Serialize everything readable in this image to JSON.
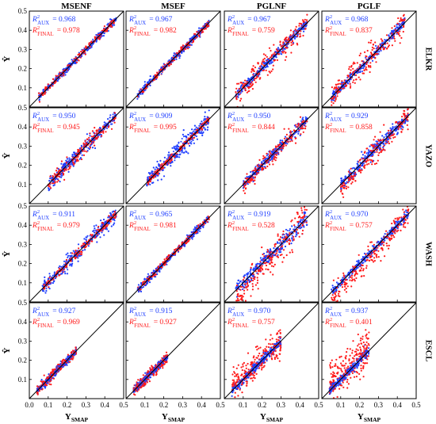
{
  "chart_data": {
    "type": "scatter",
    "layout": "4x4 grid",
    "columns": [
      "MSENF",
      "MSEF",
      "PGLNF",
      "PGLF"
    ],
    "rows": [
      "ELKR",
      "YAZO",
      "WASH",
      "ESCL"
    ],
    "ylabel": "Ŷ",
    "xlabel_main": "Y",
    "xlabel_sub": "SMAP",
    "xlim": [
      0.0,
      0.5
    ],
    "ylim": [
      0.0,
      0.5
    ],
    "xticks": [
      "0.0",
      "0.1",
      "0.2",
      "0.3",
      "0.4",
      "0.5"
    ],
    "yticks": [
      "0.1",
      "0.2",
      "0.3",
      "0.4",
      "0.5"
    ],
    "reference_line": "1:1",
    "r2_symbol": "R",
    "r2_power": "2",
    "eq": "=",
    "series": [
      {
        "name": "AUX",
        "color": "#1f3fff"
      },
      {
        "name": "FINAL",
        "color": "#ff1a1a"
      }
    ],
    "r2_aux": [
      [
        "0.968",
        "0.967",
        "0.967",
        "0.968"
      ],
      [
        "0.950",
        "0.909",
        "0.950",
        "0.929"
      ],
      [
        "0.911",
        "0.965",
        "0.919",
        "0.970"
      ],
      [
        "0.927",
        "0.915",
        "0.970",
        "0.937"
      ]
    ],
    "r2_final": [
      [
        "0.978",
        "0.982",
        "0.759",
        "0.837"
      ],
      [
        "0.945",
        "0.995",
        "0.844",
        "0.858"
      ],
      [
        "0.979",
        "0.981",
        "0.528",
        "0.757"
      ],
      [
        "0.969",
        "0.927",
        "0.757",
        "0.401"
      ]
    ],
    "point_clouds": [
      [
        {
          "x": [
            0.05,
            0.46
          ],
          "aux_spread": 0.01,
          "final_spread": 0.008,
          "final_bias": 0.0
        },
        {
          "x": [
            0.06,
            0.44
          ],
          "aux_spread": 0.01,
          "final_spread": 0.008,
          "final_bias": 0.0
        },
        {
          "x": [
            0.06,
            0.44
          ],
          "aux_spread": 0.012,
          "final_spread": 0.03,
          "final_bias": 0.0
        },
        {
          "x": [
            0.05,
            0.44
          ],
          "aux_spread": 0.012,
          "final_spread": 0.035,
          "final_bias": 0.0
        }
      ],
      [
        {
          "x": [
            0.1,
            0.46
          ],
          "aux_spread": 0.018,
          "final_spread": 0.018,
          "final_bias": 0.0
        },
        {
          "x": [
            0.11,
            0.44
          ],
          "aux_spread": 0.022,
          "final_spread": 0.008,
          "final_bias": 0.0
        },
        {
          "x": [
            0.1,
            0.44
          ],
          "aux_spread": 0.015,
          "final_spread": 0.02,
          "final_bias": -0.01
        },
        {
          "x": [
            0.1,
            0.46
          ],
          "aux_spread": 0.018,
          "final_spread": 0.03,
          "final_bias": -0.02
        }
      ],
      [
        {
          "x": [
            0.07,
            0.46
          ],
          "aux_spread": 0.02,
          "final_spread": 0.01,
          "final_bias": 0.0
        },
        {
          "x": [
            0.06,
            0.44
          ],
          "aux_spread": 0.01,
          "final_spread": 0.008,
          "final_bias": 0.0
        },
        {
          "x": [
            0.06,
            0.44
          ],
          "aux_spread": 0.02,
          "final_spread": 0.04,
          "final_bias": -0.04
        },
        {
          "x": [
            0.05,
            0.46
          ],
          "aux_spread": 0.012,
          "final_spread": 0.03,
          "final_bias": -0.04
        }
      ],
      [
        {
          "x": [
            0.04,
            0.25
          ],
          "aux_spread": 0.01,
          "final_spread": 0.012,
          "final_bias": 0.0
        },
        {
          "x": [
            0.04,
            0.22
          ],
          "aux_spread": 0.01,
          "final_spread": 0.015,
          "final_bias": 0.0
        },
        {
          "x": [
            0.04,
            0.3
          ],
          "aux_spread": 0.012,
          "final_spread": 0.035,
          "final_bias": 0.02
        },
        {
          "x": [
            0.04,
            0.25
          ],
          "aux_spread": 0.012,
          "final_spread": 0.05,
          "final_bias": 0.05
        }
      ]
    ]
  }
}
